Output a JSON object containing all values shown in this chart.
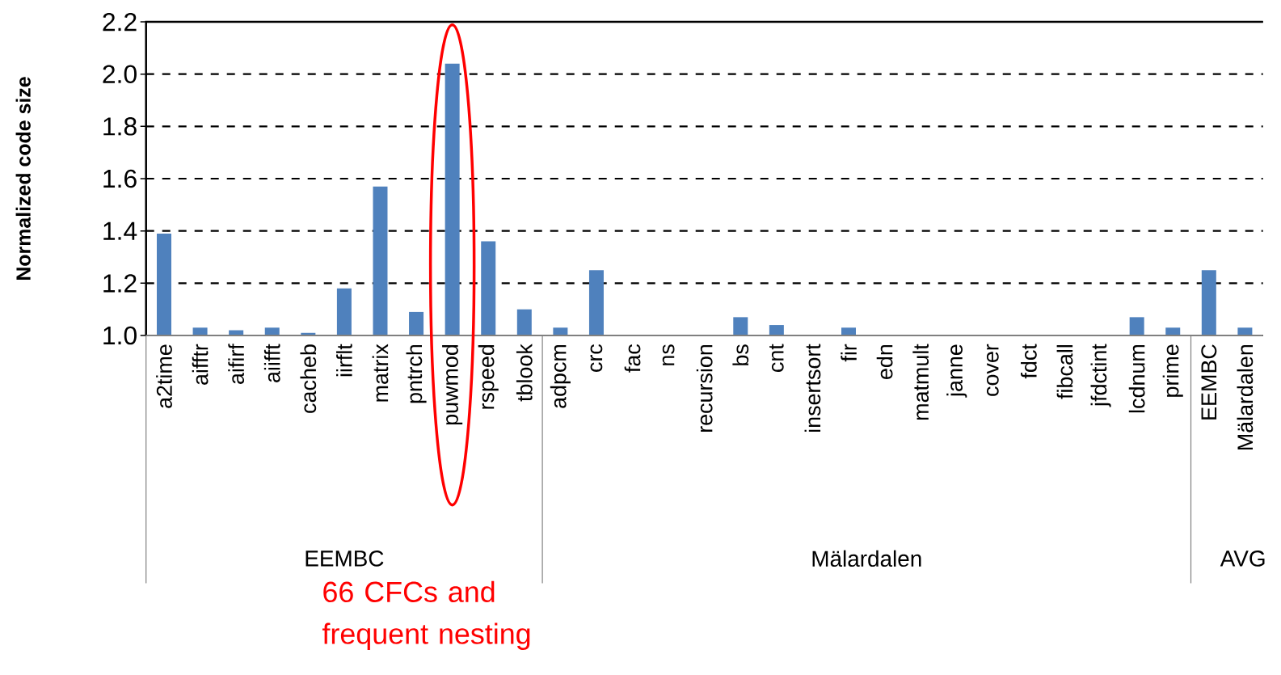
{
  "chart_data": {
    "type": "bar",
    "ylabel": "Normalized code size",
    "categories": [
      "a2time",
      "aifftr",
      "aifirf",
      "aiifft",
      "cacheb",
      "iirflt",
      "matrix",
      "pntrch",
      "puwmod",
      "rspeed",
      "tblook",
      "adpcm",
      "crc",
      "fac",
      "ns",
      "recursion",
      "bs",
      "cnt",
      "insertsort",
      "fir",
      "edn",
      "matmult",
      "janne",
      "cover",
      "fdct",
      "fibcall",
      "jfdctint",
      "lcdnum",
      "prime",
      "EEMBC",
      "Mälardalen"
    ],
    "values": [
      1.39,
      1.03,
      1.02,
      1.03,
      1.01,
      1.18,
      1.57,
      1.09,
      2.04,
      1.36,
      1.1,
      1.03,
      1.25,
      1.0,
      1.0,
      1.0,
      1.07,
      1.04,
      1.0,
      1.03,
      1.0,
      1.0,
      1.0,
      1.0,
      1.0,
      1.0,
      1.0,
      1.07,
      1.03,
      1.25,
      1.03
    ],
    "color": "#4f81bd",
    "ylim": [
      1.0,
      2.2
    ],
    "yticks": [
      {
        "value": 1.0,
        "label": "1.0"
      },
      1.2,
      1.4,
      1.6,
      1.8,
      {
        "value": 2.0,
        "label": "2.0"
      },
      2.2
    ],
    "grid": "y",
    "annotations": [
      "EEMBC",
      "Mälardalen",
      "AVG",
      "66 CFCs and frequent nesting"
    ]
  }
}
